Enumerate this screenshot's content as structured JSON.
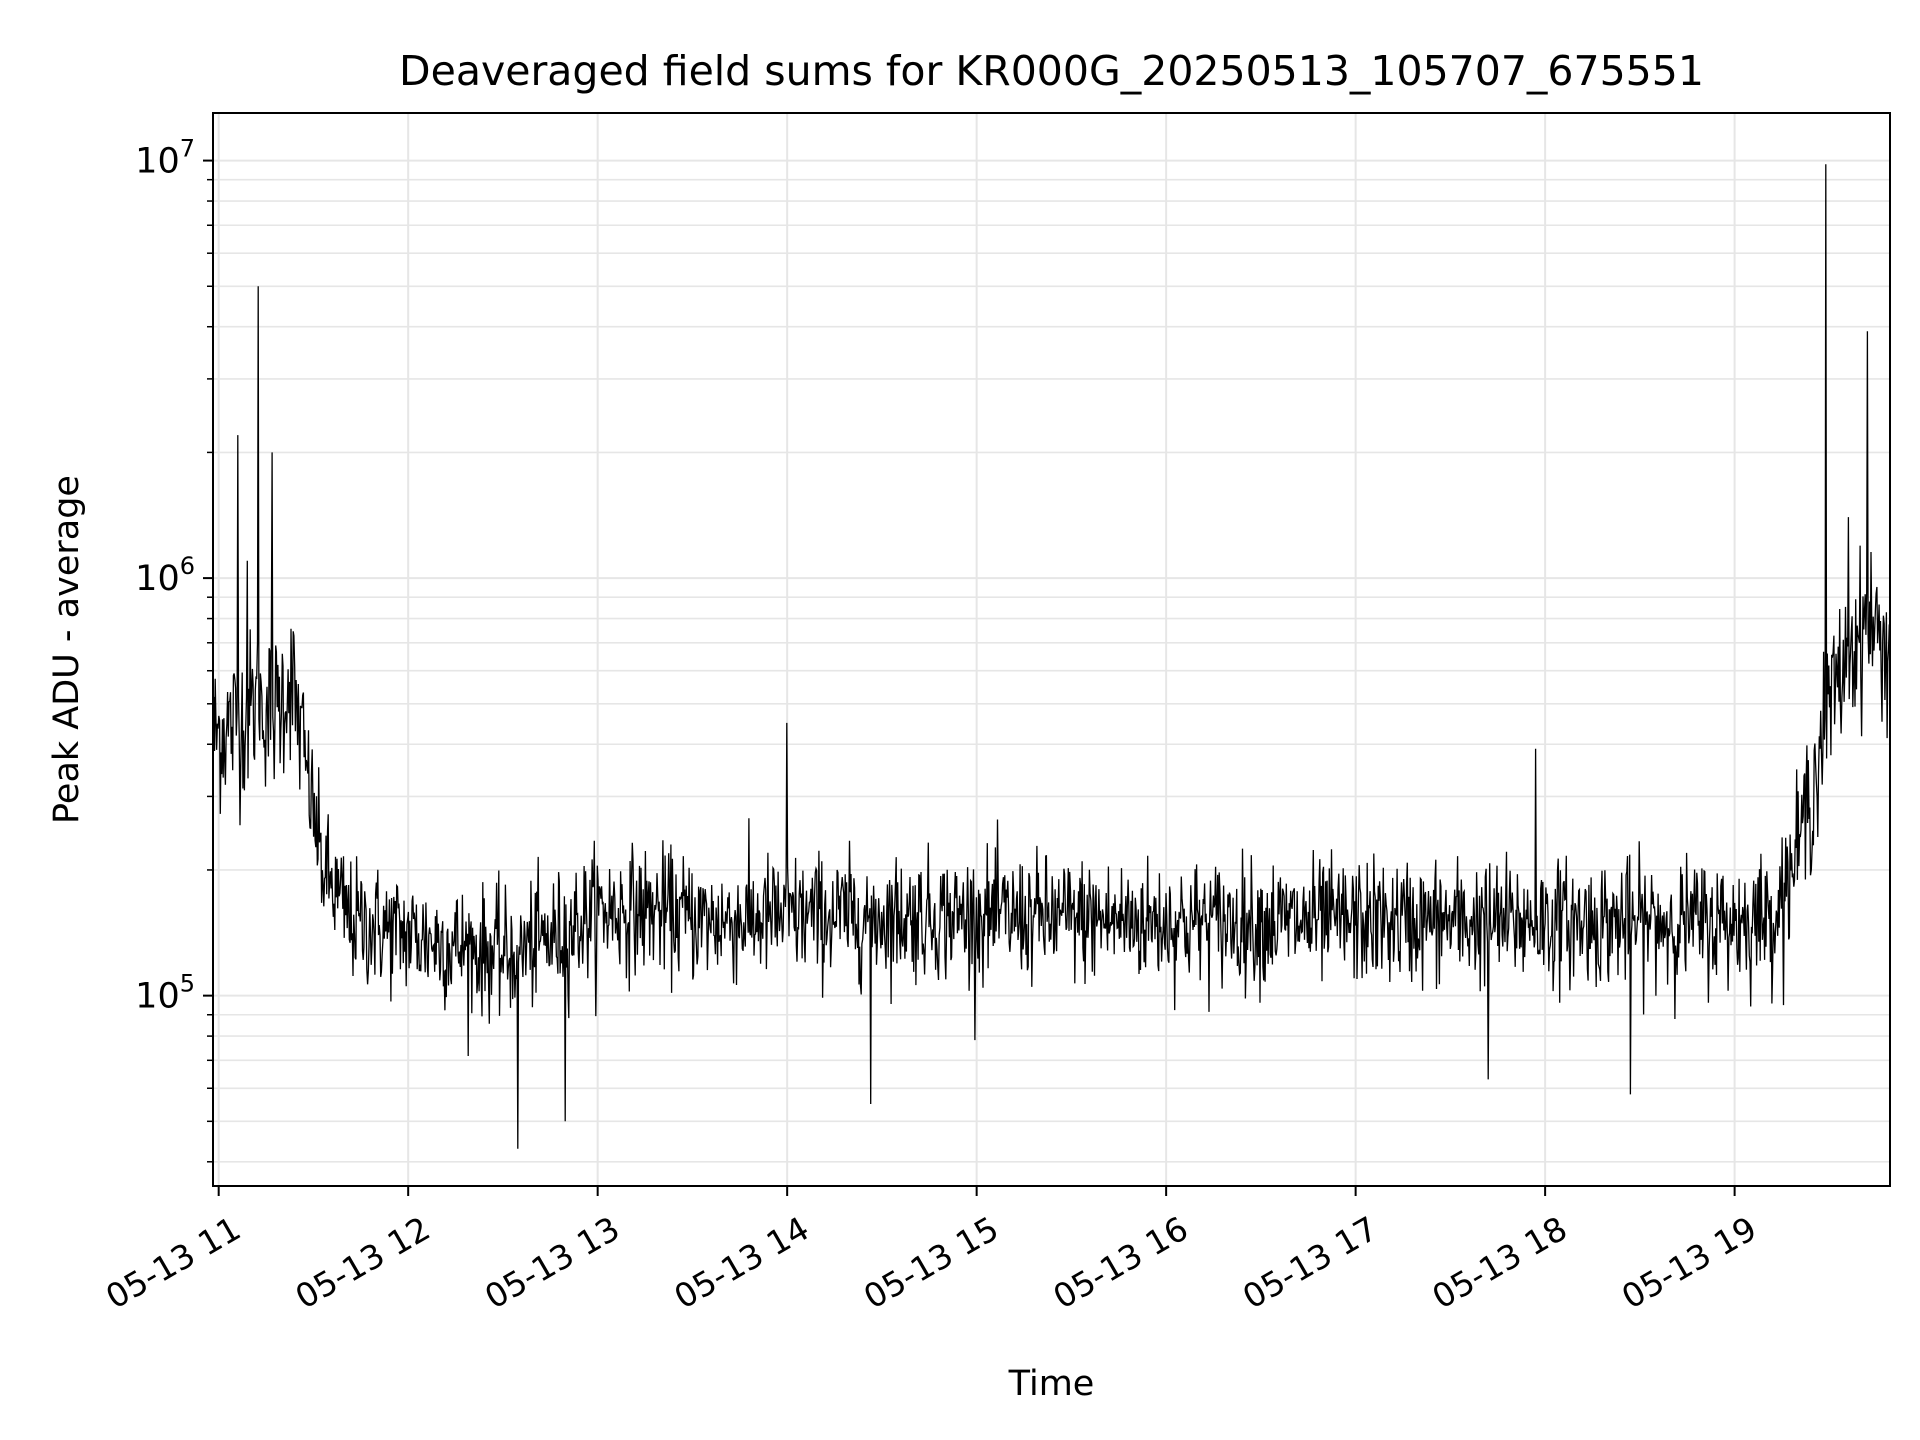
{
  "chart_data": {
    "type": "line",
    "title": "Deaveraged field sums for KR000G_20250513_105707_675551",
    "xlabel": "Time",
    "ylabel": "Peak ADU - average",
    "yscale": "log",
    "ylim": [
      35000,
      13000000
    ],
    "xlim_hours": [
      10.97,
      19.82
    ],
    "grid": true,
    "x_ticks": [
      {
        "label": "05-13 11",
        "hour": 11
      },
      {
        "label": "05-13 12",
        "hour": 12
      },
      {
        "label": "05-13 13",
        "hour": 13
      },
      {
        "label": "05-13 14",
        "hour": 14
      },
      {
        "label": "05-13 15",
        "hour": 15
      },
      {
        "label": "05-13 16",
        "hour": 16
      },
      {
        "label": "05-13 17",
        "hour": 17
      },
      {
        "label": "05-13 18",
        "hour": 18
      },
      {
        "label": "05-13 19",
        "hour": 19
      }
    ],
    "y_ticks": [
      {
        "base": "10",
        "exp": "5",
        "value": 100000
      },
      {
        "base": "10",
        "exp": "6",
        "value": 1000000
      },
      {
        "base": "10",
        "exp": "7",
        "value": 10000000
      }
    ],
    "series": [
      {
        "color": "#000000",
        "envelope": {
          "x": [
            10.97,
            11.1,
            11.2,
            11.3,
            11.38,
            11.45,
            11.55,
            11.7,
            12.0,
            12.3,
            12.5,
            12.8,
            13.0,
            13.3,
            13.6,
            14.0,
            15.0,
            16.0,
            17.0,
            18.0,
            18.5,
            19.0,
            19.2,
            19.3,
            19.4,
            19.5,
            19.6,
            19.7,
            19.82
          ],
          "y": [
            420000,
            450000,
            500000,
            480000,
            580000,
            380000,
            200000,
            150000,
            140000,
            130000,
            125000,
            140000,
            160000,
            160000,
            150000,
            155000,
            155000,
            150000,
            150000,
            150000,
            150000,
            150000,
            155000,
            200000,
            300000,
            500000,
            650000,
            800000,
            650000
          ]
        },
        "spikes": [
          {
            "x": 11.1,
            "y": 2200000
          },
          {
            "x": 11.21,
            "y": 5000000
          },
          {
            "x": 11.28,
            "y": 2000000
          },
          {
            "x": 11.15,
            "y": 1100000
          },
          {
            "x": 12.58,
            "y": 43000
          },
          {
            "x": 12.83,
            "y": 50000
          },
          {
            "x": 14.0,
            "y": 450000
          },
          {
            "x": 14.44,
            "y": 55000
          },
          {
            "x": 17.95,
            "y": 390000
          },
          {
            "x": 17.7,
            "y": 63000
          },
          {
            "x": 18.45,
            "y": 58000
          },
          {
            "x": 19.48,
            "y": 9800000
          },
          {
            "x": 19.7,
            "y": 3900000
          },
          {
            "x": 19.6,
            "y": 1400000
          }
        ]
      }
    ]
  }
}
